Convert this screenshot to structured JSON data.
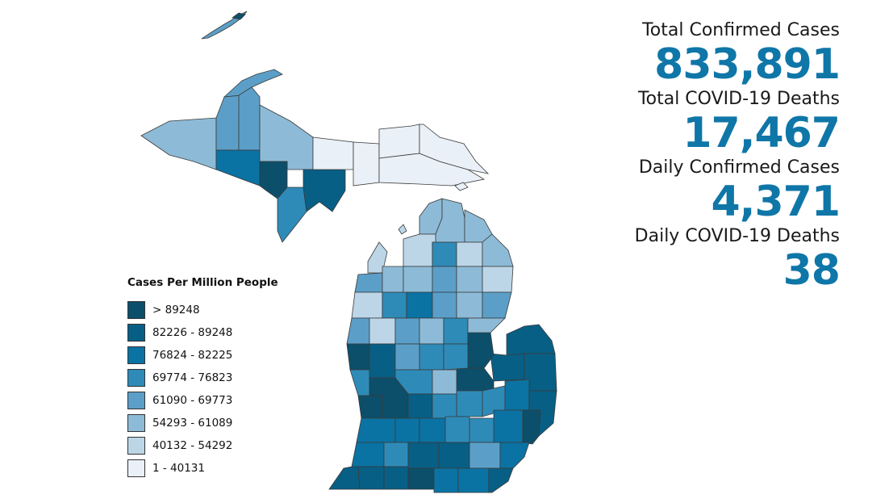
{
  "map": {
    "region": "Michigan counties",
    "legend": {
      "title": "Cases Per Million People",
      "bins": [
        {
          "label": "> 89248",
          "color": "#0c4f6a"
        },
        {
          "label": "82226 - 89248",
          "color": "#085f85"
        },
        {
          "label": "76824 - 82225",
          "color": "#0a73a3"
        },
        {
          "label": "69774 - 76823",
          "color": "#2e8bb8"
        },
        {
          "label": "61090 - 69773",
          "color": "#5b9fc8"
        },
        {
          "label": "54293 - 61089",
          "color": "#8dbbd7"
        },
        {
          "label": "40132 - 54292",
          "color": "#bcd6e8"
        },
        {
          "label": "1 - 40131",
          "color": "#e9f0f7"
        }
      ]
    }
  },
  "stats": [
    {
      "label": "Total Confirmed Cases",
      "value": "833,891"
    },
    {
      "label": "Total COVID-19 Deaths",
      "value": "17,467"
    },
    {
      "label": "Daily Confirmed Cases",
      "value": "4,371"
    },
    {
      "label": "Daily COVID-19 Deaths",
      "value": "38"
    }
  ]
}
